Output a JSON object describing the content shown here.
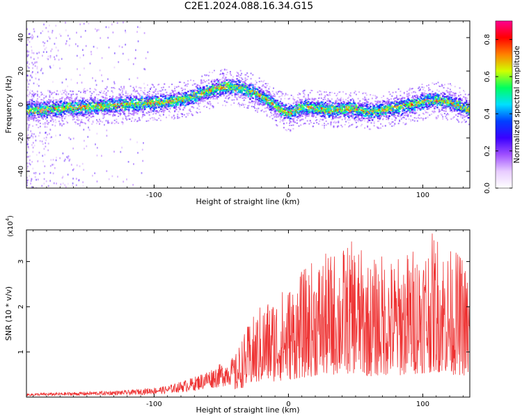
{
  "title": "C2E1.2024.088.16.34.G15",
  "chart_data": [
    {
      "type": "heatmap",
      "title": "C2E1.2024.088.16.34.G15",
      "xlabel": "Height of straight line (km)",
      "ylabel": "Frequency (Hz)",
      "xlim": [
        -195,
        135
      ],
      "ylim": [
        -50,
        50
      ],
      "xticks": [
        -100,
        0,
        100
      ],
      "yticks": [
        -40,
        -20,
        0,
        20,
        40
      ],
      "colorbar": {
        "label": "Normalized spectral amplitude",
        "range": [
          0.0,
          0.9
        ],
        "ticks": [
          "0.0",
          "0.2",
          "0.4",
          "0.6",
          "0.8"
        ],
        "colors": [
          "#ffffff",
          "#e8ccff",
          "#a050ff",
          "#3a00ff",
          "#0040ff",
          "#00e0ff",
          "#00ff60",
          "#d0ff00",
          "#ff8000",
          "#ff0000",
          "#ff0090"
        ]
      },
      "ridge": {
        "x": [
          -195,
          -170,
          -150,
          -130,
          -110,
          -90,
          -75,
          -65,
          -55,
          -45,
          -35,
          -25,
          -15,
          -8,
          0,
          10,
          20,
          30,
          45,
          60,
          75,
          90,
          105,
          120,
          135
        ],
        "freq_hz": [
          -3,
          -2,
          -1,
          0,
          1,
          2,
          4,
          7,
          10,
          11,
          10,
          7,
          3,
          -2,
          -5,
          -1,
          -2,
          -3,
          -2,
          -4,
          -2,
          0,
          3,
          2,
          -3
        ]
      }
    },
    {
      "type": "line",
      "xlabel": "Height of straight line (km)",
      "ylabel": "SNR (10 * v/v)",
      "scale_label": "(x10",
      "scale_exp": "4",
      "scale_close": ")",
      "xlim": [
        -195,
        135
      ],
      "ylim": [
        0,
        3.7
      ],
      "xticks": [
        -100,
        0,
        100
      ],
      "yticks": [
        1,
        2,
        3
      ],
      "series": [
        {
          "name": "SNR",
          "color": "#ee3333",
          "envelope_x": [
            -195,
            -150,
            -120,
            -90,
            -70,
            -50,
            -40,
            -35,
            -30,
            -20,
            -10,
            0,
            10,
            20,
            30,
            40,
            50,
            60,
            70,
            80,
            90,
            100,
            110,
            120,
            130,
            135
          ],
          "envelope_max": [
            0.08,
            0.12,
            0.15,
            0.25,
            0.45,
            0.75,
            0.9,
            1.3,
            1.6,
            2.1,
            2.3,
            2.5,
            2.8,
            3.1,
            3.2,
            3.35,
            3.5,
            3.0,
            3.2,
            3.1,
            3.3,
            3.5,
            3.7,
            3.3,
            3.2,
            2.6
          ]
        }
      ]
    }
  ]
}
